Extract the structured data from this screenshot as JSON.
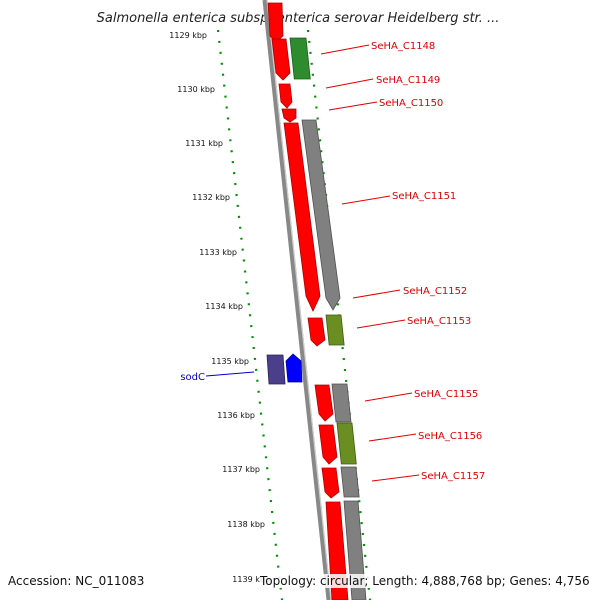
{
  "title": "Salmonella enterica subsp. enterica serovar Heidelberg str. ...",
  "axis": {
    "ticks": [
      {
        "kbp": 1129,
        "label": "1129 kbp"
      },
      {
        "kbp": 1130,
        "label": "1130 kbp"
      },
      {
        "kbp": 1131,
        "label": "1131 kbp"
      },
      {
        "kbp": 1132,
        "label": "1132 kbp"
      },
      {
        "kbp": 1133,
        "label": "1133 kbp"
      },
      {
        "kbp": 1134,
        "label": "1134 kbp"
      },
      {
        "kbp": 1135,
        "label": "1135 kbp"
      },
      {
        "kbp": 1136,
        "label": "1136 kbp"
      },
      {
        "kbp": 1137,
        "label": "1137 kbp"
      },
      {
        "kbp": 1138,
        "label": "1138 kbp"
      },
      {
        "kbp": 1139,
        "label": "1139 kbp"
      }
    ]
  },
  "genes": [
    {
      "name": "SeHA_C1148",
      "start_kbp": 1129.0,
      "end_kbp": 1129.7,
      "color": "#2e8b2e",
      "strand": "minus"
    },
    {
      "name": "SeHA_C1149",
      "start_kbp": 1129.8,
      "end_kbp": 1130.1,
      "color": "#ff0000",
      "strand": "minus"
    },
    {
      "name": "SeHA_C1150",
      "start_kbp": 1130.2,
      "end_kbp": 1130.5,
      "color": "#ff0000",
      "strand": "minus"
    },
    {
      "name": "SeHA_C1151",
      "start_kbp": 1130.6,
      "end_kbp": 1134.0,
      "color": "#808080",
      "strand": "minus"
    },
    {
      "name": "SeHA_C1152",
      "start_kbp": 1131.0,
      "end_kbp": 1134.1,
      "color": "#ff0000",
      "strand": "minus"
    },
    {
      "name": "SeHA_C1153",
      "start_kbp": 1134.2,
      "end_kbp": 1134.8,
      "color": "#6b8e23",
      "strand": "minus"
    },
    {
      "name": "sodC",
      "start_kbp": 1134.9,
      "end_kbp": 1135.4,
      "color": "#0000ff",
      "strand": "plus"
    },
    {
      "name": "SeHA_C1155",
      "start_kbp": 1135.5,
      "end_kbp": 1136.2,
      "color": "#808080",
      "strand": "minus"
    },
    {
      "name": "SeHA_C1156",
      "start_kbp": 1136.3,
      "end_kbp": 1137.0,
      "color": "#6b8e23",
      "strand": "minus"
    },
    {
      "name": "SeHA_C1157",
      "start_kbp": 1137.1,
      "end_kbp": 1137.6,
      "color": "#808080",
      "strand": "minus"
    }
  ],
  "footer": {
    "accession": "Accession: NC_011083",
    "topology": "Topology: circular; Length: 4,888,768 bp; Genes: 4,756"
  }
}
